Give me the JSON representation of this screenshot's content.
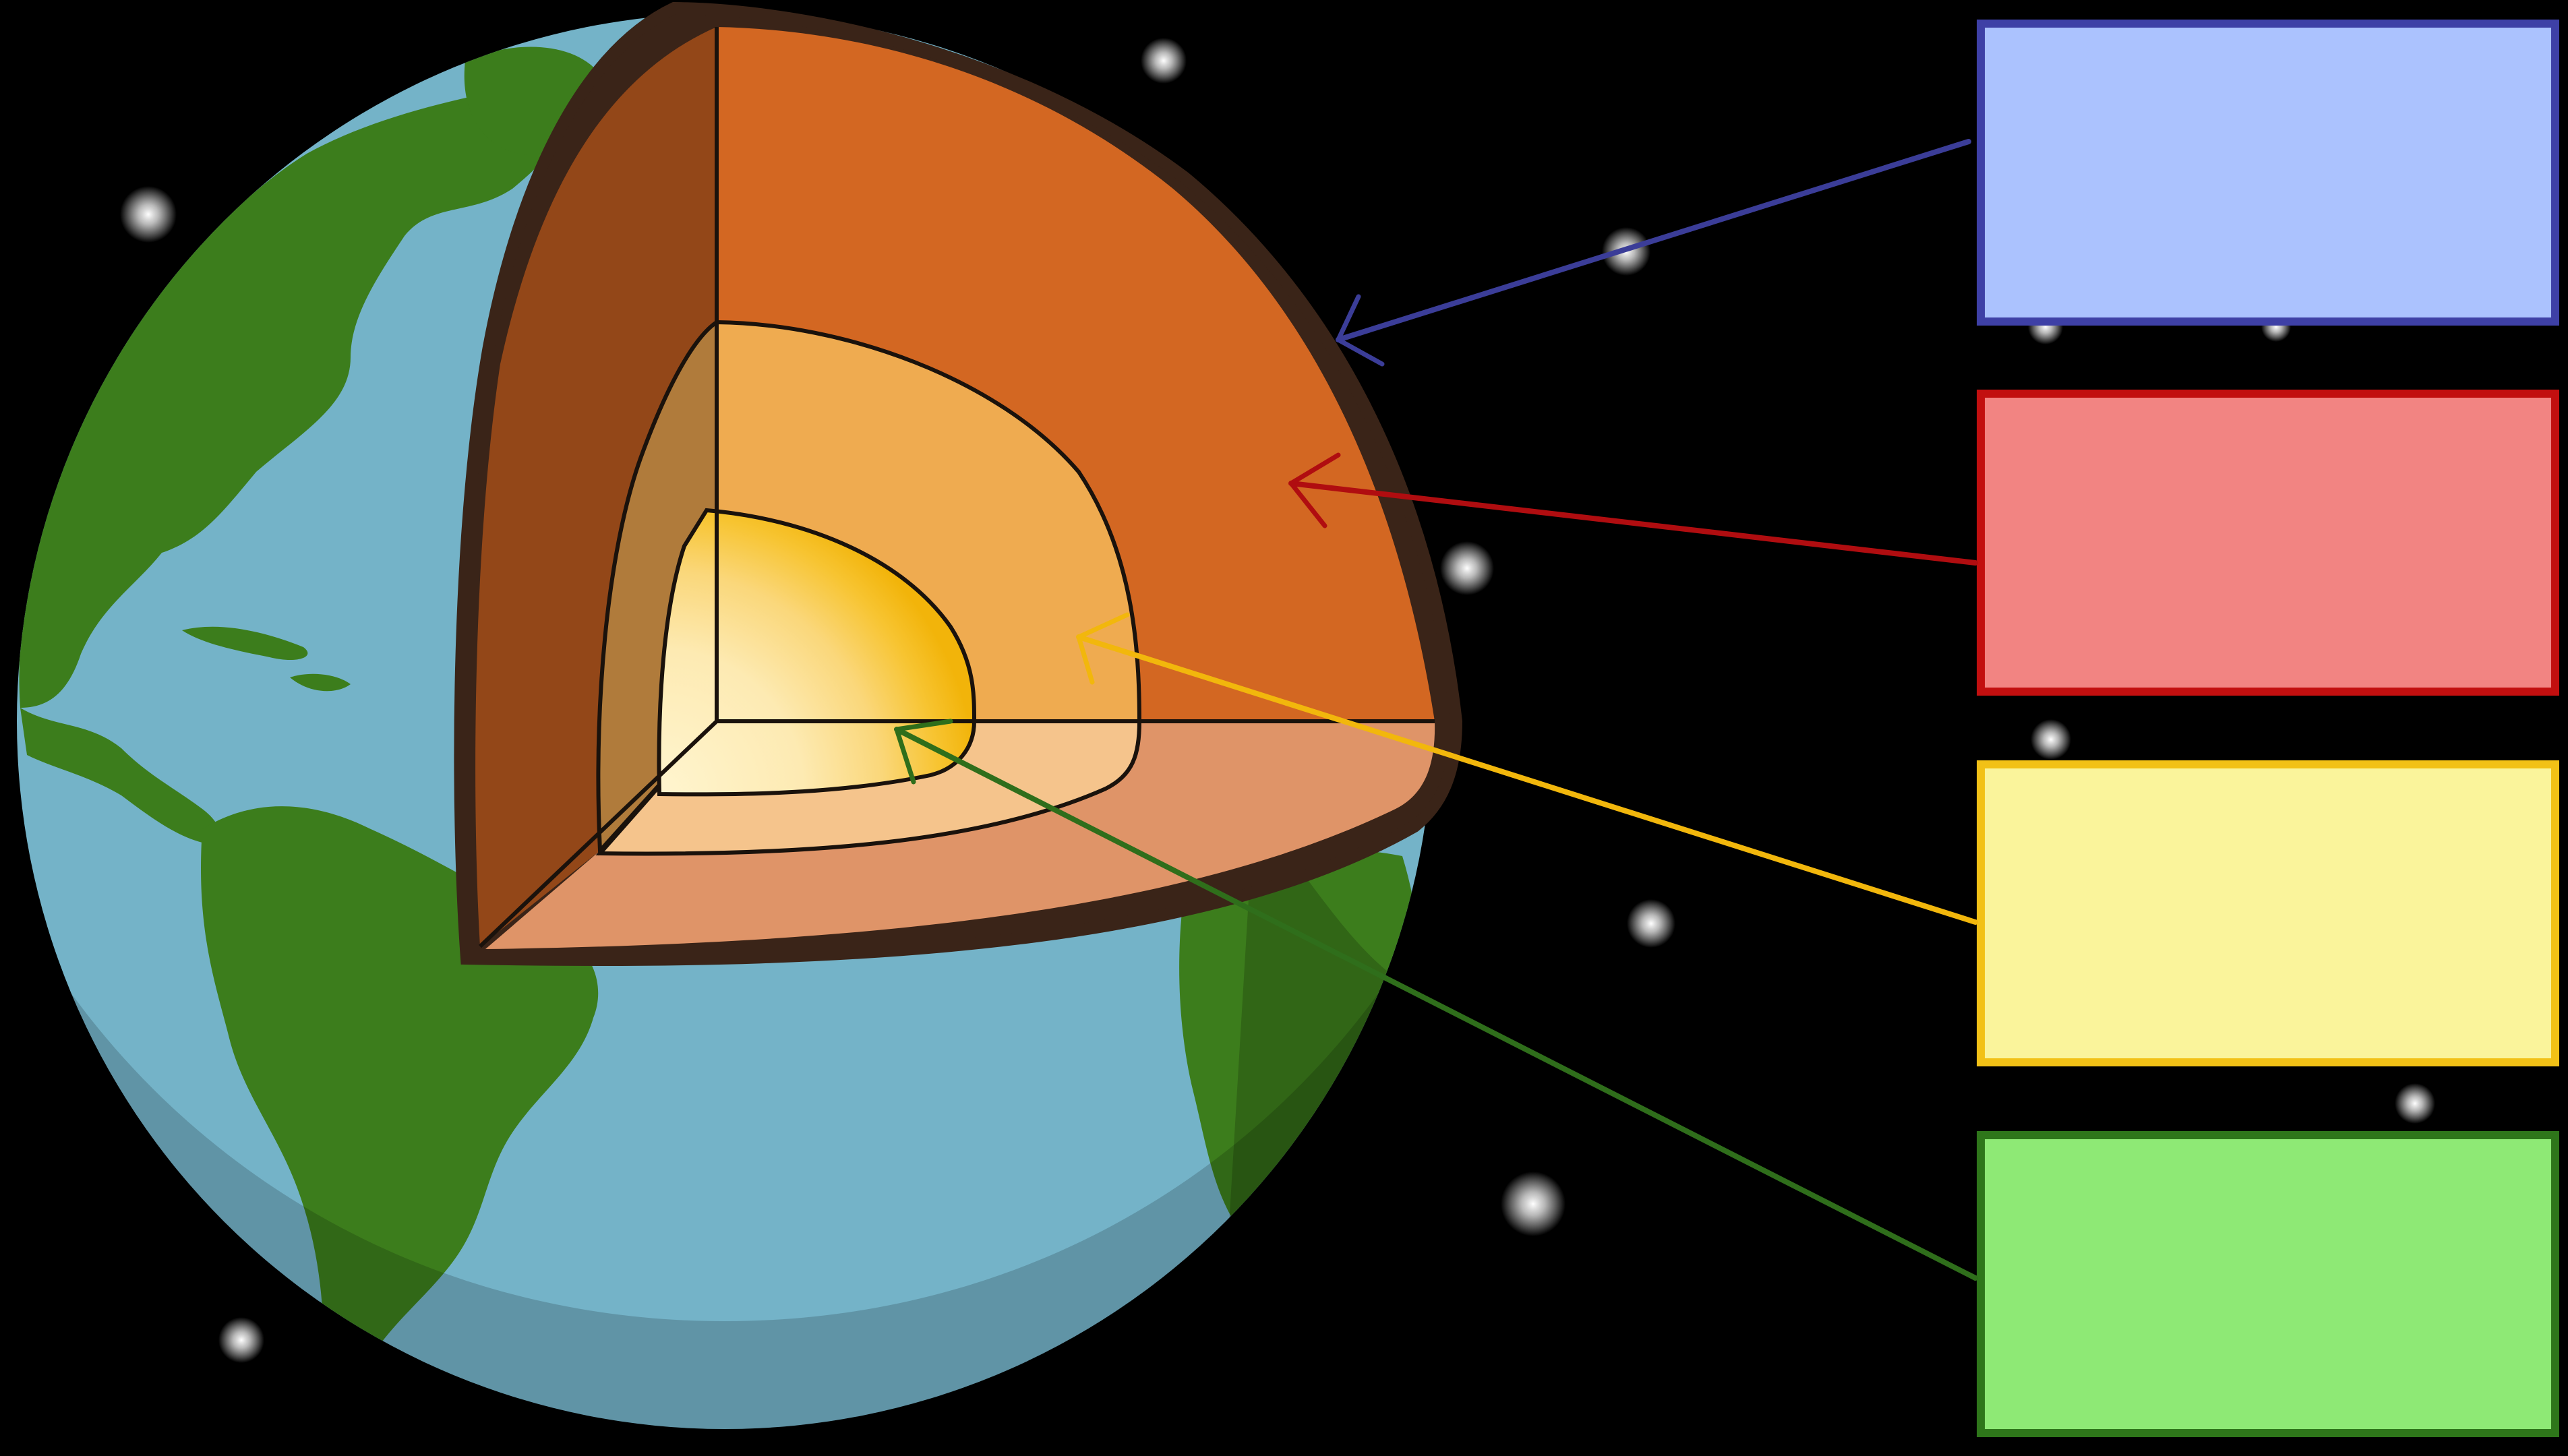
{
  "colors": {
    "background": "#000000",
    "ocean": "#74b3c8",
    "land": "#3c7d1c",
    "crust_outline": "#3a2418",
    "mantle": "#d36722",
    "mantle_side": "#934718",
    "mantle_floor": "#df9468",
    "outer_core": "#efab50",
    "outer_core_side": "#b07b3b",
    "outer_core_floor": "#f5c48c",
    "inner_core_edge": "#f2b80a",
    "inner_core_center": "#fff3c8"
  },
  "labels": [
    {
      "id": "crust",
      "text": "",
      "fill": "#abc2fe",
      "border": "#3e40a6",
      "arrow": "#3b3d98"
    },
    {
      "id": "mantle",
      "text": "",
      "fill": "#f28482",
      "border": "#c20f0f",
      "arrow": "#b00d10"
    },
    {
      "id": "outer-core",
      "text": "",
      "fill": "#faf49b",
      "border": "#f2c116",
      "arrow": "#f2b70c"
    },
    {
      "id": "inner-core",
      "text": "",
      "fill": "#8ee975",
      "border": "#2e761a",
      "arrow": "#2f6e1b"
    }
  ]
}
